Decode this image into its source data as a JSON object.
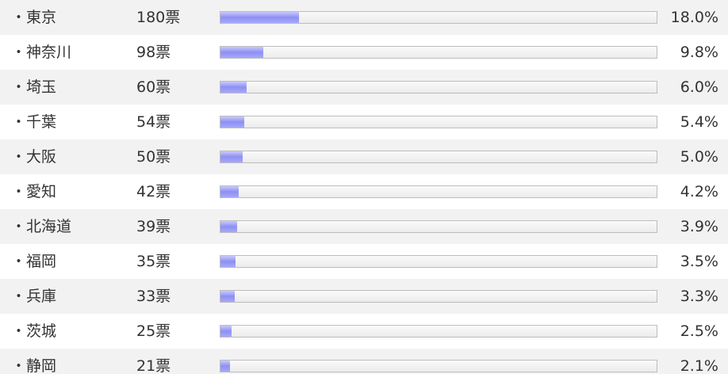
{
  "chart_data": {
    "type": "bar",
    "orientation": "horizontal",
    "categories": [
      "・東京",
      "・神奈川",
      "・埼玉",
      "・千葉",
      "・大阪",
      "・愛知",
      "・北海道",
      "・福岡",
      "・兵庫",
      "・茨城",
      "・静岡"
    ],
    "vote_labels": [
      "180票",
      "98票",
      "60票",
      "54票",
      "50票",
      "42票",
      "39票",
      "35票",
      "33票",
      "25票",
      "21票"
    ],
    "percent_labels": [
      "18.0%",
      "9.8%",
      "6.0%",
      "5.4%",
      "5.0%",
      "4.2%",
      "3.9%",
      "3.5%",
      "3.3%",
      "2.5%",
      "2.1%"
    ],
    "values": [
      18.0,
      9.8,
      6.0,
      5.4,
      5.0,
      4.2,
      3.9,
      3.5,
      3.3,
      2.5,
      2.1
    ],
    "xlim": [
      0,
      100
    ],
    "grid": false,
    "colors": {
      "bar_fill": "#8e90f2",
      "track": "#ececec",
      "row_alt": "#f2f2f2"
    }
  }
}
